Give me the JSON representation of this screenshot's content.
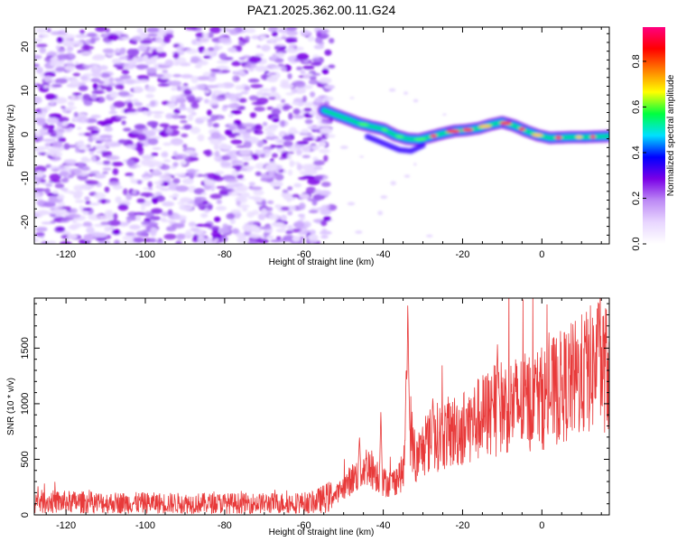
{
  "chart_data": [
    {
      "type": "heatmap",
      "title": "PAZ1.2025.362.00.11.G24",
      "xlabel": "Height of straight line (km)",
      "ylabel": "Frequency (Hz)",
      "xlim": [
        -128,
        17
      ],
      "ylim": [
        -25,
        24.5
      ],
      "x_ticks": [
        -120,
        -100,
        -80,
        -60,
        -40,
        -20,
        0
      ],
      "y_ticks": [
        -20,
        -10,
        0,
        10,
        20
      ],
      "noise_region": {
        "x": [
          -128,
          -53
        ],
        "y": [
          -25,
          24.5
        ]
      },
      "signal_trace": {
        "x": [
          -55,
          -52,
          -49,
          -46,
          -43,
          -40,
          -37,
          -34,
          -31,
          -28,
          -25,
          -22,
          -19,
          -16,
          -13,
          -10,
          -7,
          -4,
          -1,
          2,
          5,
          8,
          11,
          14,
          17
        ],
        "freq": [
          5.5,
          4.5,
          3.5,
          2.5,
          1.8,
          1.2,
          -0.2,
          -1.0,
          -1.2,
          -0.5,
          0.2,
          0.8,
          1.0,
          1.4,
          2.2,
          2.8,
          2.0,
          0.8,
          -0.2,
          -0.8,
          -0.7,
          -0.6,
          -0.6,
          -0.5,
          -0.4
        ]
      },
      "colorbar": {
        "label": "Normalized spectral amplitude",
        "range": [
          0,
          0.95
        ],
        "ticks": [
          "0.0",
          "0.2",
          "0.4",
          "0.6",
          "0.8"
        ],
        "colors": [
          "#ffffff",
          "#e8d6ff",
          "#bd8af5",
          "#7a00e6",
          "#0000ff",
          "#00e0ff",
          "#00ff40",
          "#ffff00",
          "#ff8000",
          "#ff0000",
          "#ff0080"
        ]
      }
    },
    {
      "type": "line",
      "title": "",
      "xlabel": "Height of straight line (km)",
      "ylabel": "SNR (10 * v/v)",
      "xlim": [
        -128,
        17
      ],
      "ylim": [
        0,
        1950
      ],
      "x_ticks": [
        -120,
        -100,
        -80,
        -60,
        -40,
        -20,
        0
      ],
      "y_ticks": [
        0,
        500,
        1000,
        1500
      ],
      "color": "#e83a3a",
      "envelope": {
        "x": [
          -128,
          -110,
          -90,
          -70,
          -58,
          -52,
          -48,
          -46,
          -44,
          -42,
          -40,
          -38,
          -35,
          -33.5,
          -32,
          -30,
          -28,
          -25,
          -20,
          -15,
          -10,
          -5,
          0,
          5,
          10,
          14,
          17
        ],
        "y": [
          120,
          110,
          105,
          105,
          110,
          180,
          320,
          380,
          450,
          380,
          300,
          280,
          380,
          900,
          450,
          600,
          680,
          720,
          780,
          880,
          980,
          1000,
          1050,
          1150,
          1250,
          1350,
          1300
        ]
      },
      "peaks": [
        {
          "x": -33.8,
          "y": 1950
        },
        {
          "x": -34.2,
          "y": 1380
        },
        {
          "x": -40.6,
          "y": 960
        },
        {
          "x": -11.2,
          "y": 1550
        },
        {
          "x": -12.5,
          "y": 1050
        },
        {
          "x": -1.5,
          "y": 1280
        },
        {
          "x": 11,
          "y": 1570
        },
        {
          "x": 14.2,
          "y": 1650
        },
        {
          "x": -27.5,
          "y": 1080
        },
        {
          "x": -46,
          "y": 720
        }
      ]
    }
  ]
}
